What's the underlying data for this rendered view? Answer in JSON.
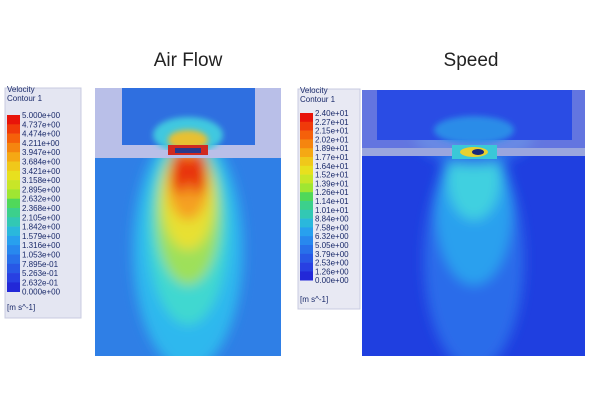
{
  "panels": [
    {
      "title": "Air Flow",
      "legend": {
        "title": [
          "Velocity",
          "Contour 1"
        ],
        "unit": "[m s^-1]",
        "labels": [
          "5.000e+00",
          "4.737e+00",
          "4.474e+00",
          "4.211e+00",
          "3.947e+00",
          "3.684e+00",
          "3.421e+00",
          "3.158e+00",
          "2.895e+00",
          "2.632e+00",
          "2.368e+00",
          "2.105e+00",
          "1.842e+00",
          "1.579e+00",
          "1.316e+00",
          "1.053e+00",
          "7.895e-01",
          "5.263e-01",
          "2.632e-01",
          "0.000e+00"
        ]
      }
    },
    {
      "title": "Speed",
      "legend": {
        "title": [
          "Velocity",
          "Contour 1"
        ],
        "unit": "[m s^-1]",
        "labels": [
          "2.40e+01",
          "2.27e+01",
          "2.15e+01",
          "2.02e+01",
          "1.89e+01",
          "1.77e+01",
          "1.64e+01",
          "1.52e+01",
          "1.39e+01",
          "1.26e+01",
          "1.14e+01",
          "1.01e+01",
          "8.84e+00",
          "7.58e+00",
          "6.32e+00",
          "5.05e+00",
          "3.79e+00",
          "2.53e+00",
          "1.26e+00",
          "0.00e+00"
        ]
      }
    }
  ]
}
